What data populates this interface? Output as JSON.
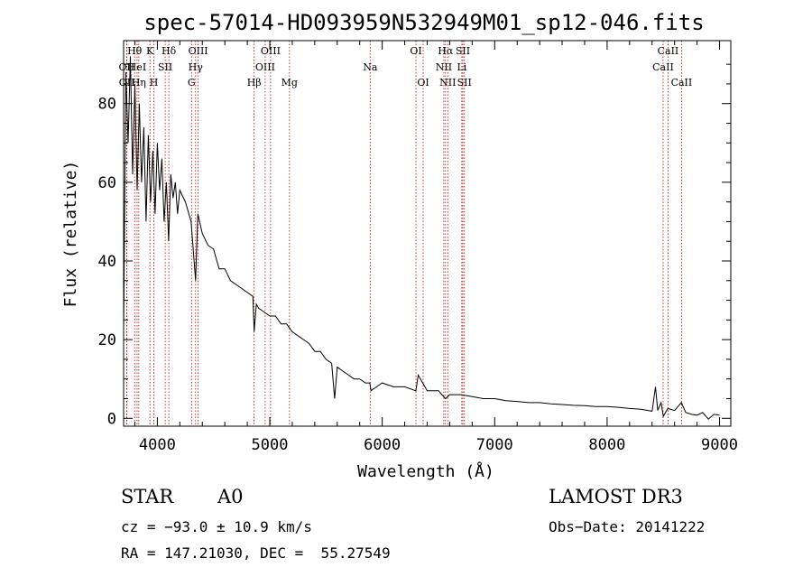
{
  "chart_data": {
    "type": "line",
    "title": "spec-57014-HD093959N532949M01_sp12-046.fits",
    "xlabel": "Wavelength (Å)",
    "ylabel": "Flux (relative)",
    "xlim": [
      3700,
      9100
    ],
    "ylim": [
      -2,
      96
    ],
    "xticks": [
      4000,
      5000,
      6000,
      7000,
      8000,
      9000
    ],
    "yticks": [
      0,
      20,
      40,
      60,
      80
    ],
    "spectrum": {
      "x": [
        3700,
        3720,
        3740,
        3760,
        3780,
        3800,
        3820,
        3840,
        3860,
        3880,
        3900,
        3920,
        3940,
        3960,
        3980,
        4000,
        4020,
        4040,
        4060,
        4080,
        4100,
        4120,
        4140,
        4160,
        4180,
        4200,
        4250,
        4300,
        4340,
        4360,
        4400,
        4450,
        4500,
        4550,
        4600,
        4650,
        4700,
        4750,
        4800,
        4850,
        4861,
        4880,
        4900,
        4950,
        5000,
        5050,
        5100,
        5150,
        5200,
        5250,
        5300,
        5350,
        5400,
        5450,
        5500,
        5550,
        5577,
        5600,
        5650,
        5700,
        5750,
        5800,
        5850,
        5890,
        5900,
        5950,
        6000,
        6100,
        6200,
        6300,
        6320,
        6400,
        6500,
        6563,
        6600,
        6700,
        6800,
        6900,
        7000,
        7100,
        7200,
        7300,
        7400,
        7500,
        7600,
        7700,
        7800,
        7900,
        8000,
        8100,
        8200,
        8300,
        8400,
        8430,
        8450,
        8480,
        8500,
        8540,
        8600,
        8660,
        8700,
        8750,
        8800,
        8850,
        8900,
        8950,
        9000
      ],
      "y": [
        22,
        88,
        70,
        92,
        62,
        85,
        58,
        80,
        60,
        74,
        50,
        72,
        55,
        68,
        52,
        70,
        58,
        66,
        50,
        60,
        45,
        62,
        56,
        60,
        52,
        58,
        55,
        50,
        35,
        52,
        47,
        44,
        43,
        38,
        38,
        35,
        34,
        33,
        32,
        31,
        22,
        29,
        28,
        27,
        26,
        26,
        24,
        24,
        22,
        21,
        20,
        19,
        17,
        17,
        15,
        14,
        5,
        13,
        12,
        11,
        10,
        10,
        9,
        9,
        7,
        8,
        9,
        8,
        8,
        7,
        11,
        7,
        7,
        5,
        6,
        6,
        5.5,
        5,
        5,
        4.5,
        4.3,
        4,
        4,
        3.7,
        3.5,
        3.3,
        3.2,
        3,
        3,
        2.8,
        2.5,
        2.3,
        1.8,
        8,
        2,
        4,
        0.5,
        2.5,
        2,
        4,
        1.5,
        1,
        0.8,
        1.5,
        -0.2,
        1,
        0.8
      ]
    },
    "line_markers": [
      {
        "label": "OII",
        "wavelength": 3727,
        "row": 2
      },
      {
        "label": "OII",
        "wavelength": 3729,
        "row": 3
      },
      {
        "label": "Hθ",
        "wavelength": 3798,
        "row": 1
      },
      {
        "label": "HeI",
        "wavelength": 3820,
        "row": 2
      },
      {
        "label": "Hη",
        "wavelength": 3835,
        "row": 3
      },
      {
        "label": "K",
        "wavelength": 3934,
        "row": 1
      },
      {
        "label": "SII",
        "wavelength": 4070,
        "row": 2
      },
      {
        "label": "H",
        "wavelength": 3969,
        "row": 3
      },
      {
        "label": "Hδ",
        "wavelength": 4102,
        "row": 1
      },
      {
        "label": "OIII",
        "wavelength": 4363,
        "row": 1
      },
      {
        "label": "Hγ",
        "wavelength": 4340,
        "row": 2
      },
      {
        "label": "G",
        "wavelength": 4304,
        "row": 3
      },
      {
        "label": "OIII",
        "wavelength": 5007,
        "row": 1
      },
      {
        "label": "OIII",
        "wavelength": 4959,
        "row": 2
      },
      {
        "label": "Hβ",
        "wavelength": 4861,
        "row": 3
      },
      {
        "label": "Mg",
        "wavelength": 5175,
        "row": 3
      },
      {
        "label": "Na",
        "wavelength": 5893,
        "row": 2
      },
      {
        "label": "OI",
        "wavelength": 6300,
        "row": 1
      },
      {
        "label": "OI",
        "wavelength": 6364,
        "row": 3
      },
      {
        "label": "Hα",
        "wavelength": 6563,
        "row": 1
      },
      {
        "label": "SII",
        "wavelength": 6717,
        "row": 1
      },
      {
        "label": "NII",
        "wavelength": 6548,
        "row": 2
      },
      {
        "label": "Li",
        "wavelength": 6708,
        "row": 2
      },
      {
        "label": "NII",
        "wavelength": 6583,
        "row": 3
      },
      {
        "label": "SII",
        "wavelength": 6731,
        "row": 3
      },
      {
        "label": "CaII",
        "wavelength": 8542,
        "row": 1
      },
      {
        "label": "CaII",
        "wavelength": 8498,
        "row": 2
      },
      {
        "label": "CaII",
        "wavelength": 8662,
        "row": 3
      }
    ]
  },
  "footer": {
    "object_class": "STAR",
    "subclass": "A0",
    "survey": "LAMOST DR3",
    "velocity": "cz = −93.0 ± 10.9 km/s",
    "obs_date": "Obs−Date: 20141222",
    "coords": "RA = 147.21030, DEC =  55.27549"
  }
}
